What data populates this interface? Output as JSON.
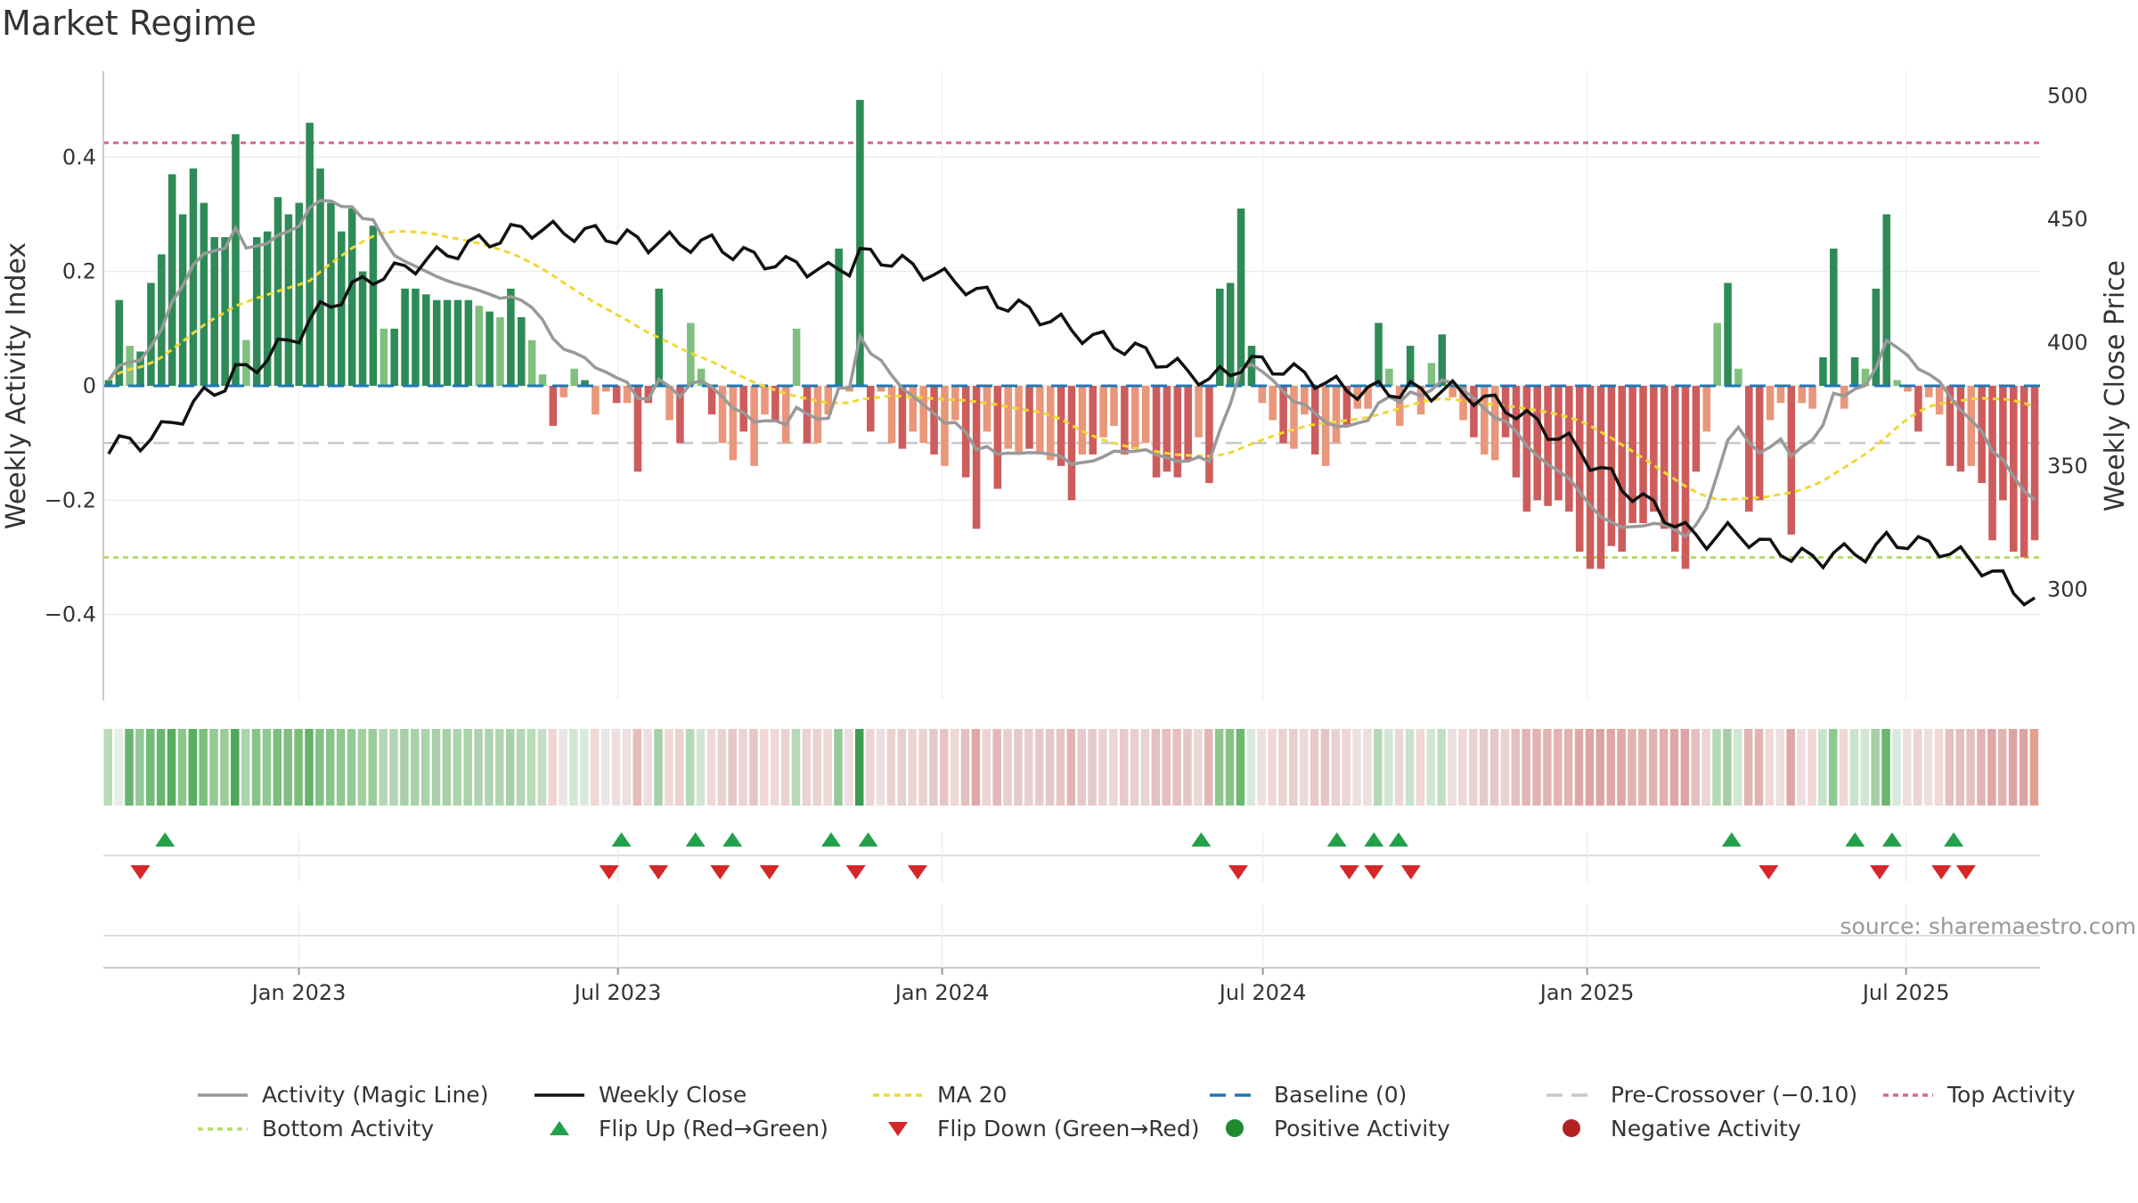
{
  "title": "Market Regime",
  "source": "source: sharemaestro.com",
  "colors": {
    "pos_strong": "#2e8b57",
    "pos_light": "#7fc07f",
    "neg_strong": "#cd5c5c",
    "neg_light": "#e9967a",
    "magic": "#999999",
    "close": "#111111",
    "ma": "#f0d832",
    "baseline": "#1f77b4",
    "pre": "#c8c8c8",
    "top": "#d9668a",
    "bottom": "#b5dc6a",
    "flip_up": "#23a04a",
    "flip_down": "#d62728"
  },
  "chart_data": {
    "type": "bar",
    "title": "Market Regime",
    "ylabel": "Weekly Activity Index",
    "y2label": "Weekly Close Price",
    "ylim": [
      -0.55,
      0.55
    ],
    "y2lim": [
      255,
      510
    ],
    "yticks": [
      -0.4,
      -0.2,
      0,
      0.2,
      0.4
    ],
    "ytick_labels": [
      "−0.4",
      "−0.2",
      "0",
      "0.2",
      "0.4"
    ],
    "y2ticks": [
      300,
      350,
      400,
      450,
      500
    ],
    "y2tick_labels": [
      "300",
      "350",
      "400",
      "450",
      "500"
    ],
    "x_start": "2022-09-12",
    "x_end": "2025-09-15",
    "xticks": [
      "2023-01-01",
      "2023-07-01",
      "2024-01-01",
      "2024-07-01",
      "2025-01-01",
      "2025-07-01"
    ],
    "xtick_labels": [
      "Jan 2023",
      "Jul 2023",
      "Jan 2024",
      "Jul 2024",
      "Jan 2025",
      "Jul 2025"
    ],
    "reference_lines": {
      "baseline": 0,
      "pre_crossover": -0.1,
      "top_activity": 0.425,
      "bottom_activity": -0.3
    },
    "activity": [
      0.01,
      0.15,
      0.07,
      0.06,
      0.18,
      0.23,
      0.37,
      0.3,
      0.38,
      0.32,
      0.26,
      0.26,
      0.44,
      0.08,
      0.26,
      0.27,
      0.33,
      0.3,
      0.32,
      0.46,
      0.38,
      0.32,
      0.27,
      0.31,
      0.2,
      0.28,
      0.1,
      0.1,
      0.17,
      0.17,
      0.16,
      0.15,
      0.15,
      0.15,
      0.15,
      0.14,
      0.13,
      0.12,
      0.17,
      0.12,
      0.08,
      0.02,
      -0.07,
      -0.02,
      0.03,
      0.01,
      -0.05,
      -0.01,
      -0.03,
      -0.03,
      -0.15,
      -0.03,
      0.17,
      -0.06,
      -0.1,
      0.11,
      0.03,
      -0.05,
      -0.1,
      -0.13,
      -0.08,
      -0.14,
      -0.05,
      -0.06,
      -0.1,
      0.1,
      -0.1,
      -0.1,
      -0.05,
      0.24,
      -0.01,
      0.5,
      -0.08,
      -0.01,
      -0.1,
      -0.11,
      -0.08,
      -0.1,
      -0.12,
      -0.14,
      -0.06,
      -0.16,
      -0.25,
      -0.08,
      -0.18,
      -0.11,
      -0.12,
      -0.11,
      -0.12,
      -0.13,
      -0.14,
      -0.2,
      -0.12,
      -0.12,
      -0.09,
      -0.07,
      -0.12,
      -0.11,
      -0.1,
      -0.16,
      -0.15,
      -0.16,
      -0.13,
      -0.09,
      -0.17,
      0.17,
      0.18,
      0.31,
      0.07,
      -0.03,
      -0.06,
      -0.1,
      -0.11,
      -0.05,
      -0.12,
      -0.14,
      -0.1,
      -0.07,
      -0.04,
      -0.04,
      0.11,
      0.03,
      -0.07,
      0.07,
      -0.05,
      0.04,
      0.09,
      -0.02,
      -0.06,
      -0.09,
      -0.12,
      -0.13,
      -0.09,
      -0.16,
      -0.22,
      -0.2,
      -0.21,
      -0.2,
      -0.22,
      -0.29,
      -0.32,
      -0.32,
      -0.28,
      -0.29,
      -0.24,
      -0.24,
      -0.22,
      -0.25,
      -0.29,
      -0.32,
      -0.15,
      -0.08,
      0.11,
      0.18,
      0.03,
      -0.22,
      -0.2,
      -0.06,
      -0.03,
      -0.26,
      -0.03,
      -0.04,
      0.05,
      0.24,
      -0.04,
      0.05,
      0.03,
      0.17,
      0.3,
      0.01,
      -0.01,
      -0.08,
      -0.02,
      -0.05,
      -0.14,
      -0.15,
      -0.14,
      -0.17,
      -0.27,
      -0.2,
      -0.29,
      -0.3,
      -0.27
    ]
  },
  "strip": {
    "colors": [
      "#b9dbb8",
      "#e6ede7",
      "#66b66f",
      "#93c894",
      "#73b979",
      "#6ab56c",
      "#55ad5d",
      "#8ec78c",
      "#5aaf62",
      "#7bc07f",
      "#95c998",
      "#9bcb9a",
      "#4ca85a",
      "#aed4ad",
      "#85c386",
      "#91c893",
      "#7ebe7e",
      "#80be81",
      "#7cbd7c",
      "#63b36a",
      "#82c184",
      "#89c48b",
      "#8fc890",
      "#96c998",
      "#a3cfa3",
      "#9bcb9a",
      "#b4d6b4",
      "#b4d5b4",
      "#a8d0a8",
      "#a9d2a9",
      "#acd3ac",
      "#a8d0a8",
      "#a8d0a8",
      "#acd3ac",
      "#a9d2a9",
      "#afd3b0",
      "#afd3b0",
      "#b1d5b2",
      "#a9d1a9",
      "#b4d6b4",
      "#b9dbb8",
      "#c4dec4",
      "#f1d4d4",
      "#e8e6e6",
      "#d2e7d3",
      "#d8eadb",
      "#efd8d6",
      "#e8e6e6",
      "#eddfdf",
      "#eddfdf",
      "#e6bdbc",
      "#eddfdf",
      "#a6cfa7",
      "#efd8d6",
      "#ead2d0",
      "#b6d8b7",
      "#d2e7d3",
      "#efd8d6",
      "#ead2d0",
      "#e6c7c7",
      "#ecd4d4",
      "#e6c6c6",
      "#efd8d6",
      "#efd8d6",
      "#ead2d0",
      "#b7d8b9",
      "#ead2d0",
      "#ead2d0",
      "#efd8d6",
      "#96c998",
      "#eddfdf",
      "#3e9e50",
      "#ecd4d4",
      "#eddfdf",
      "#ead2d0",
      "#e8cecd",
      "#ecd4d4",
      "#ead2d0",
      "#e6cacb",
      "#e7c4c4",
      "#efd8d6",
      "#e4c0c0",
      "#dfa8a6",
      "#ecd4d4",
      "#e2b9b8",
      "#e8cecd",
      "#e6cacb",
      "#e8cecd",
      "#e6cacb",
      "#e6c7c7",
      "#e7c4c4",
      "#e1b4b2",
      "#e6cacb",
      "#e6cacb",
      "#ead2d0",
      "#ecd6d6",
      "#e6cacb",
      "#e8cecd",
      "#ead2d0",
      "#e4c0c0",
      "#e6bdbc",
      "#e4c0c0",
      "#e6c7c7",
      "#ecd6d6",
      "#e2b9b8",
      "#8ec78c",
      "#88c48a",
      "#6bb870",
      "#d8eadb",
      "#eddfdf",
      "#efd8d6",
      "#ead2d0",
      "#e8cecd",
      "#efd8d6",
      "#e6cacb",
      "#e7c4c4",
      "#ead2d0",
      "#ecd6d6",
      "#eddfdf",
      "#eddfdf",
      "#b6d8b7",
      "#d2e7d3",
      "#ecd6d6",
      "#c8e3c9",
      "#efd8d6",
      "#d2e7d3",
      "#c0dfc2",
      "#eddfdf",
      "#efd8d6",
      "#ead2d0",
      "#e6cacb",
      "#e6c7c7",
      "#ead2d0",
      "#e4c0c0",
      "#e1b4b2",
      "#e1b4b2",
      "#e1b4b2",
      "#e1b4b2",
      "#e1b4b2",
      "#dfa8a6",
      "#dca5a4",
      "#dca5a4",
      "#dfa8a6",
      "#dfa8a6",
      "#e1b4b2",
      "#e1b4b2",
      "#e1b4b2",
      "#e0afae",
      "#dfa8a6",
      "#dca5a4",
      "#e4c0c0",
      "#ecd4d4",
      "#b6d8b7",
      "#a3cfa3",
      "#d2e7d3",
      "#e1b4b2",
      "#e1b4b2",
      "#efd8d6",
      "#eddfdf",
      "#dfa8a6",
      "#eddfdf",
      "#efd8d6",
      "#c8e3c9",
      "#8fc890",
      "#efd8d6",
      "#c8e3c9",
      "#d2e7d3",
      "#a6cfa7",
      "#6ab56c",
      "#d8eadb",
      "#eddfdf",
      "#ecd4d4",
      "#eddfdf",
      "#efd8d6",
      "#e4c0c0",
      "#e4c0c0",
      "#e4c0c0",
      "#e1b4b2",
      "#dfa8a6",
      "#e1b4b2",
      "#dca5a4",
      "#dca5a4",
      "#e3a08a"
    ]
  },
  "flips": {
    "up_dates": [
      "2022-10-17",
      "2023-07-03",
      "2023-08-14",
      "2023-09-04",
      "2023-10-30",
      "2023-11-20",
      "2024-05-27",
      "2024-08-12",
      "2024-09-02",
      "2024-09-16",
      "2025-03-24",
      "2025-06-02",
      "2025-06-23",
      "2025-07-28"
    ],
    "down_dates": [
      "2022-10-03",
      "2023-06-26",
      "2023-07-24",
      "2023-08-28",
      "2023-09-25",
      "2023-11-13",
      "2023-12-18",
      "2024-06-17",
      "2024-08-19",
      "2024-09-02",
      "2024-09-23",
      "2025-04-14",
      "2025-06-16",
      "2025-07-21",
      "2025-08-04"
    ]
  },
  "legend": [
    {
      "key": "magic",
      "label": "Activity (Magic Line)"
    },
    {
      "key": "close",
      "label": "Weekly Close"
    },
    {
      "key": "ma",
      "label": "MA 20"
    },
    {
      "key": "baseline",
      "label": "Baseline (0)"
    },
    {
      "key": "pre",
      "label": "Pre-Crossover (−0.10)"
    },
    {
      "key": "top",
      "label": "Top Activity"
    },
    {
      "key": "bottom",
      "label": "Bottom Activity"
    },
    {
      "key": "flip_up",
      "label": "Flip Up (Red→Green)"
    },
    {
      "key": "flip_down",
      "label": "Flip Down (Green→Red)"
    },
    {
      "key": "pos_dot",
      "label": "Positive Activity"
    },
    {
      "key": "neg_dot",
      "label": "Negative Activity"
    }
  ]
}
